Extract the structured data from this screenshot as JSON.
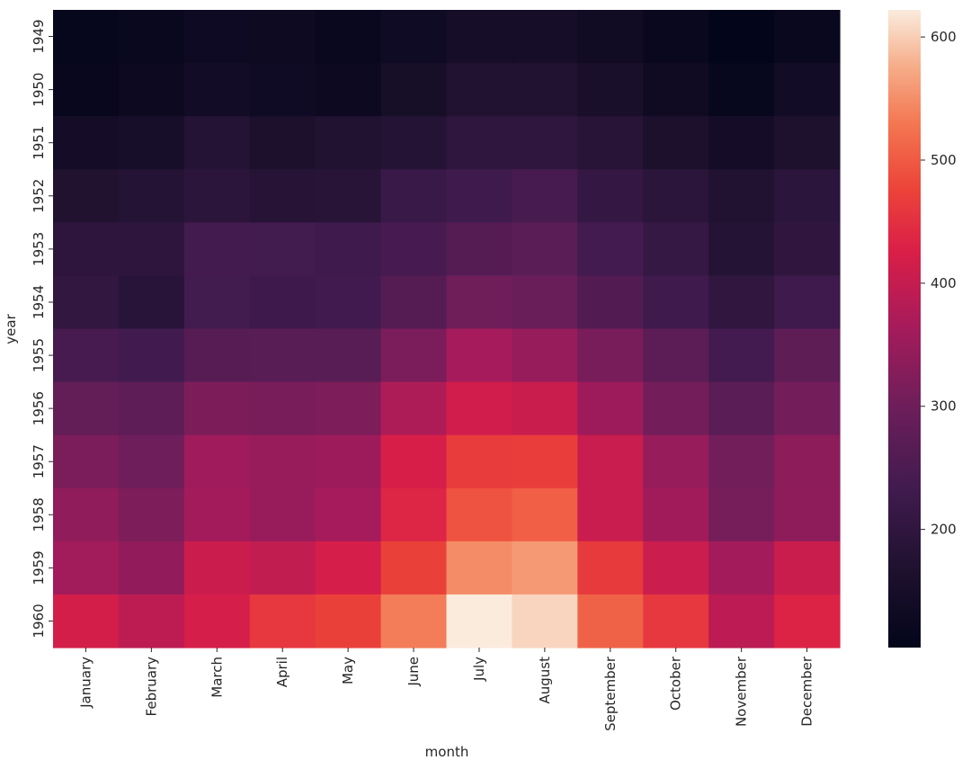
{
  "chart_data": {
    "type": "heatmap",
    "title": "",
    "xlabel": "month",
    "ylabel": "year",
    "x": [
      "January",
      "February",
      "March",
      "April",
      "May",
      "June",
      "July",
      "August",
      "September",
      "October",
      "November",
      "December"
    ],
    "y": [
      "1949",
      "1950",
      "1951",
      "1952",
      "1953",
      "1954",
      "1955",
      "1956",
      "1957",
      "1958",
      "1959",
      "1960"
    ],
    "values": [
      [
        112,
        118,
        132,
        129,
        121,
        135,
        148,
        148,
        136,
        119,
        104,
        118
      ],
      [
        115,
        126,
        141,
        135,
        125,
        149,
        170,
        170,
        158,
        133,
        114,
        140
      ],
      [
        145,
        150,
        178,
        163,
        172,
        178,
        199,
        199,
        184,
        162,
        146,
        166
      ],
      [
        171,
        180,
        193,
        181,
        183,
        218,
        230,
        242,
        209,
        191,
        172,
        194
      ],
      [
        196,
        196,
        236,
        235,
        229,
        243,
        264,
        272,
        237,
        211,
        180,
        201
      ],
      [
        204,
        188,
        235,
        227,
        234,
        264,
        302,
        293,
        259,
        229,
        203,
        229
      ],
      [
        242,
        233,
        267,
        269,
        270,
        315,
        364,
        347,
        312,
        274,
        237,
        278
      ],
      [
        284,
        277,
        317,
        313,
        318,
        374,
        413,
        405,
        355,
        306,
        271,
        306
      ],
      [
        315,
        301,
        356,
        348,
        355,
        422,
        465,
        467,
        404,
        347,
        305,
        336
      ],
      [
        340,
        318,
        362,
        348,
        363,
        435,
        491,
        505,
        404,
        359,
        310,
        337
      ],
      [
        360,
        342,
        406,
        396,
        420,
        472,
        548,
        559,
        463,
        407,
        362,
        405
      ],
      [
        417,
        391,
        419,
        461,
        472,
        535,
        622,
        606,
        508,
        461,
        390,
        432
      ]
    ],
    "colorbar": {
      "min": 104,
      "max": 622,
      "ticks": [
        "200",
        "300",
        "400",
        "500",
        "600"
      ],
      "colormap": "rocket"
    },
    "grid": false
  }
}
